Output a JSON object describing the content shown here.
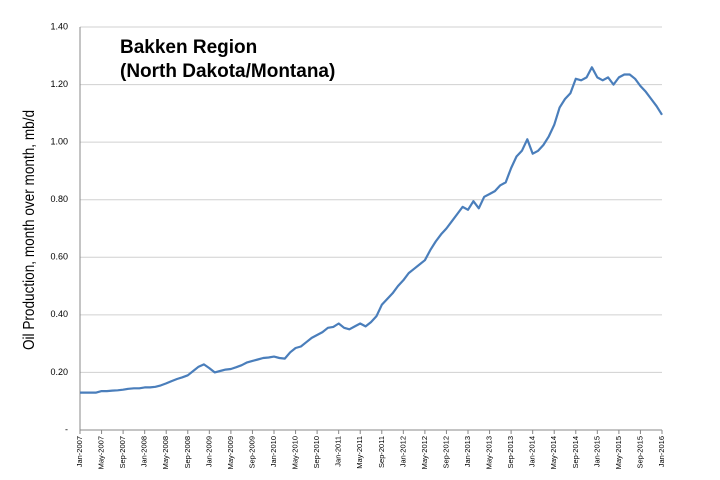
{
  "chart_data": {
    "type": "line",
    "title_lines": [
      "Bakken Region",
      "(North Dakota/Montana)"
    ],
    "y_label": "Oil Production, month over month, mb/d",
    "categories": [
      "Jan-2007",
      null,
      null,
      null,
      "May-2007",
      null,
      null,
      null,
      "Sep-2007",
      null,
      null,
      null,
      "Jan-2008",
      null,
      null,
      null,
      "May-2008",
      null,
      null,
      null,
      "Sep-2008",
      null,
      null,
      null,
      "Jan-2009",
      null,
      null,
      null,
      "May-2009",
      null,
      null,
      null,
      "Sep-2009",
      null,
      null,
      null,
      "Jan-2010",
      null,
      null,
      null,
      "May-2010",
      null,
      null,
      null,
      "Sep-2010",
      null,
      null,
      null,
      "Jan-2011",
      null,
      null,
      null,
      "May-2011",
      null,
      null,
      null,
      "Sep-2011",
      null,
      null,
      null,
      "Jan-2012",
      null,
      null,
      null,
      "May-2012",
      null,
      null,
      null,
      "Sep-2012",
      null,
      null,
      null,
      "Jan-2013",
      null,
      null,
      null,
      "May-2013",
      null,
      null,
      null,
      "Sep-2013",
      null,
      null,
      null,
      "Jan-2014",
      null,
      null,
      null,
      "May-2014",
      null,
      null,
      null,
      "Sep-2014",
      null,
      null,
      null,
      "Jan-2015",
      null,
      null,
      null,
      "May-2015",
      null,
      null,
      null,
      "Sep-2015",
      null,
      null,
      null,
      "Jan-2016"
    ],
    "series": [
      {
        "color": "#4a7ebb",
        "values": [
          0.13,
          0.13,
          0.13,
          0.13,
          0.135,
          0.135,
          0.137,
          0.138,
          0.14,
          0.143,
          0.145,
          0.145,
          0.148,
          0.148,
          0.15,
          0.155,
          0.162,
          0.17,
          0.177,
          0.183,
          0.19,
          0.205,
          0.22,
          0.228,
          0.215,
          0.2,
          0.205,
          0.21,
          0.212,
          0.218,
          0.225,
          0.235,
          0.24,
          0.245,
          0.25,
          0.252,
          0.255,
          0.25,
          0.248,
          0.27,
          0.285,
          0.29,
          0.305,
          0.32,
          0.33,
          0.34,
          0.355,
          0.358,
          0.37,
          0.355,
          0.35,
          0.36,
          0.37,
          0.36,
          0.375,
          0.395,
          0.435,
          0.455,
          0.475,
          0.5,
          0.52,
          0.545,
          0.56,
          0.575,
          0.59,
          0.625,
          0.655,
          0.68,
          0.7,
          0.725,
          0.75,
          0.775,
          0.765,
          0.795,
          0.77,
          0.81,
          0.82,
          0.83,
          0.85,
          0.86,
          0.91,
          0.95,
          0.97,
          1.01,
          0.96,
          0.97,
          0.99,
          1.02,
          1.06,
          1.12,
          1.15,
          1.17,
          1.22,
          1.215,
          1.225,
          1.26,
          1.225,
          1.215,
          1.225,
          1.2,
          1.225,
          1.235,
          1.235,
          1.22,
          1.195,
          1.175,
          1.15,
          1.125,
          1.095
        ]
      }
    ],
    "ylim": [
      0,
      1.4
    ],
    "yticks": [
      {
        "value": 0,
        "label": "-"
      },
      {
        "value": 0.2,
        "label": "0.20"
      },
      {
        "value": 0.4,
        "label": "0.40"
      },
      {
        "value": 0.6,
        "label": "0.60"
      },
      {
        "value": 0.8,
        "label": "0.80"
      },
      {
        "value": 1.0,
        "label": "1.00"
      },
      {
        "value": 1.2,
        "label": "1.20"
      },
      {
        "value": 1.4,
        "label": "1.40"
      }
    ],
    "grid": true
  }
}
